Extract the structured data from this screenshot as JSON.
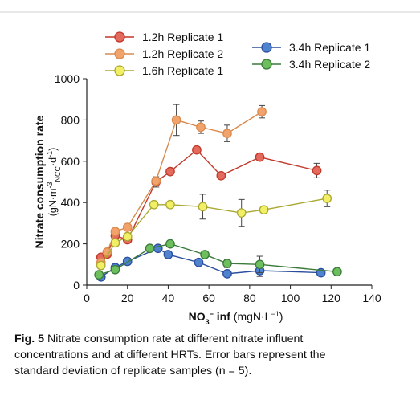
{
  "chart_data": {
    "type": "line",
    "xlabel": "NO3- inf (mgN·L-1)",
    "ylabel": "Nitrate consumption rate",
    "ylabel_units": "(gN·m-3NCC·d-1)",
    "xlim": [
      0,
      140
    ],
    "ylim": [
      0,
      1000
    ],
    "xticks": [
      0,
      20,
      40,
      60,
      80,
      100,
      120,
      140
    ],
    "yticks": [
      0,
      200,
      400,
      600,
      800,
      1000
    ],
    "legend_left": [
      "1.2h Replicate 1",
      "1.2h Replicate 2",
      "1.6h Replicate 1"
    ],
    "legend_right": [
      "3.4h Replicate 1",
      "3.4h Replicate 2"
    ],
    "series": [
      {
        "name": "1.2h Replicate 1",
        "color": "#c0392b",
        "fill": "#e46a5e",
        "x": [
          7,
          10,
          14,
          20,
          34,
          41,
          54,
          66,
          85,
          113
        ],
        "y": [
          135,
          150,
          240,
          220,
          500,
          550,
          655,
          530,
          620,
          555
        ],
        "err": [
          0,
          0,
          0,
          0,
          25,
          0,
          15,
          0,
          0,
          35
        ]
      },
      {
        "name": "1.2h Replicate 2",
        "color": "#d98a4e",
        "fill": "#f2a36b",
        "x": [
          7,
          10,
          14,
          20,
          34,
          44,
          56,
          69,
          86
        ],
        "y": [
          110,
          160,
          260,
          280,
          505,
          800,
          765,
          735,
          840
        ],
        "err": [
          0,
          0,
          0,
          0,
          0,
          75,
          30,
          40,
          30
        ]
      },
      {
        "name": "1.6h Replicate 1",
        "color": "#aaa830",
        "fill": "#f0ef66",
        "x": [
          7,
          14,
          20,
          33,
          41,
          57,
          76,
          87,
          118
        ],
        "y": [
          95,
          205,
          235,
          390,
          390,
          380,
          350,
          365,
          420
        ],
        "err": [
          0,
          0,
          0,
          0,
          15,
          60,
          65,
          15,
          40
        ]
      },
      {
        "name": "3.4h Replicate 1",
        "color": "#2b4f9e",
        "fill": "#4f82cf",
        "x": [
          7,
          14,
          20,
          35,
          40,
          55,
          69,
          85,
          115
        ],
        "y": [
          40,
          85,
          115,
          178,
          148,
          110,
          55,
          70,
          60
        ],
        "err": [
          0,
          0,
          0,
          0,
          0,
          0,
          0,
          28,
          0
        ]
      },
      {
        "name": "3.4h Replicate 2",
        "color": "#3a7a3a",
        "fill": "#6dbf5e",
        "x": [
          6,
          14,
          31,
          41,
          58,
          69,
          85,
          123
        ],
        "y": [
          50,
          75,
          178,
          200,
          148,
          105,
          100,
          65
        ],
        "err": [
          0,
          0,
          0,
          15,
          0,
          20,
          40,
          15
        ]
      }
    ]
  },
  "caption": {
    "label": "Fig. 5",
    "line1": "Nitrate consumption rate at different nitrate influent",
    "line2": "concentrations and at different HRTs. Error bars represent the",
    "line3": "standard deviation of replicate samples (n = 5)."
  }
}
